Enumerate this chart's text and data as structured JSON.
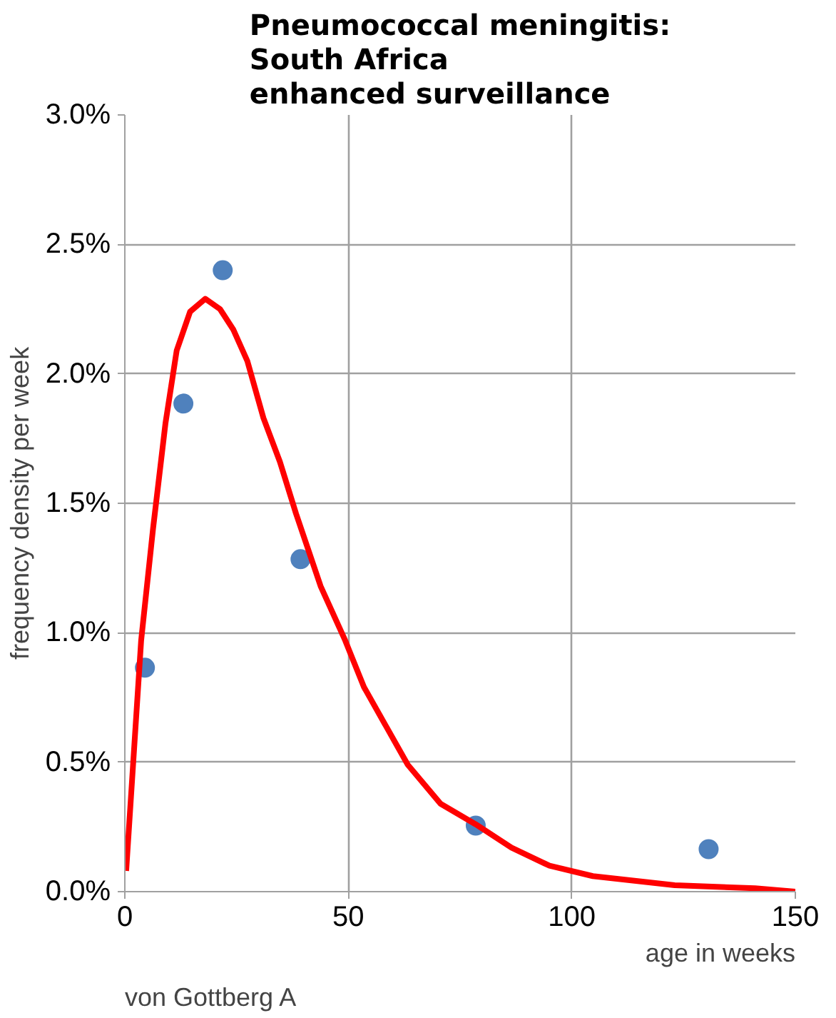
{
  "chart_data": {
    "type": "scatter",
    "title": "Pneumococcal meningitis:\nSouth Africa\nenhanced surveillance",
    "xlabel": "age in weeks",
    "ylabel": "frequency density per week",
    "annotations": [
      "von Gottberg A"
    ],
    "series": [
      {
        "color": "#4f81bd",
        "marker": "circle",
        "x": [
          4.5,
          13.1,
          21.9,
          39.3,
          78.5,
          130.6
        ],
        "values": [
          0.865,
          1.885,
          2.4,
          1.284,
          0.255,
          0.164
        ]
      },
      {
        "type": "line",
        "color": "#ff0000",
        "marker": "none",
        "line_style": "solid",
        "x": [
          0.3,
          3.65,
          6.3,
          9.1,
          11.6,
          14.6,
          18.0,
          21.3,
          24.3,
          27.4,
          31.0,
          34.7,
          38.3,
          43.8,
          49.3,
          53.5,
          58.4,
          63.3,
          70.6,
          78.5,
          86.5,
          95,
          104.7,
          123,
          141,
          150
        ],
        "values": [
          0.08,
          0.97,
          1.4,
          1.81,
          2.09,
          2.24,
          2.29,
          2.25,
          2.17,
          2.05,
          1.83,
          1.66,
          1.46,
          1.18,
          0.97,
          0.79,
          0.64,
          0.49,
          0.34,
          0.26,
          0.17,
          0.1,
          0.06,
          0.025,
          0.013,
          0.0
        ]
      }
    ],
    "xlim": [
      0,
      150
    ],
    "xticks": [
      0,
      50,
      100,
      150
    ],
    "ylim": [
      0,
      3.0
    ],
    "yticks": [
      {
        "value": 0,
        "label": "0.0%"
      },
      {
        "value": 0.5,
        "label": "0.5%"
      },
      {
        "value": 1.0,
        "label": "1.0%"
      },
      {
        "value": 1.5,
        "label": "1.5%"
      },
      {
        "value": 2.0,
        "label": "2.0%"
      },
      {
        "value": 2.5,
        "label": "2.5%"
      },
      {
        "value": 3.0,
        "label": "3.0%"
      }
    ],
    "grid": true
  }
}
